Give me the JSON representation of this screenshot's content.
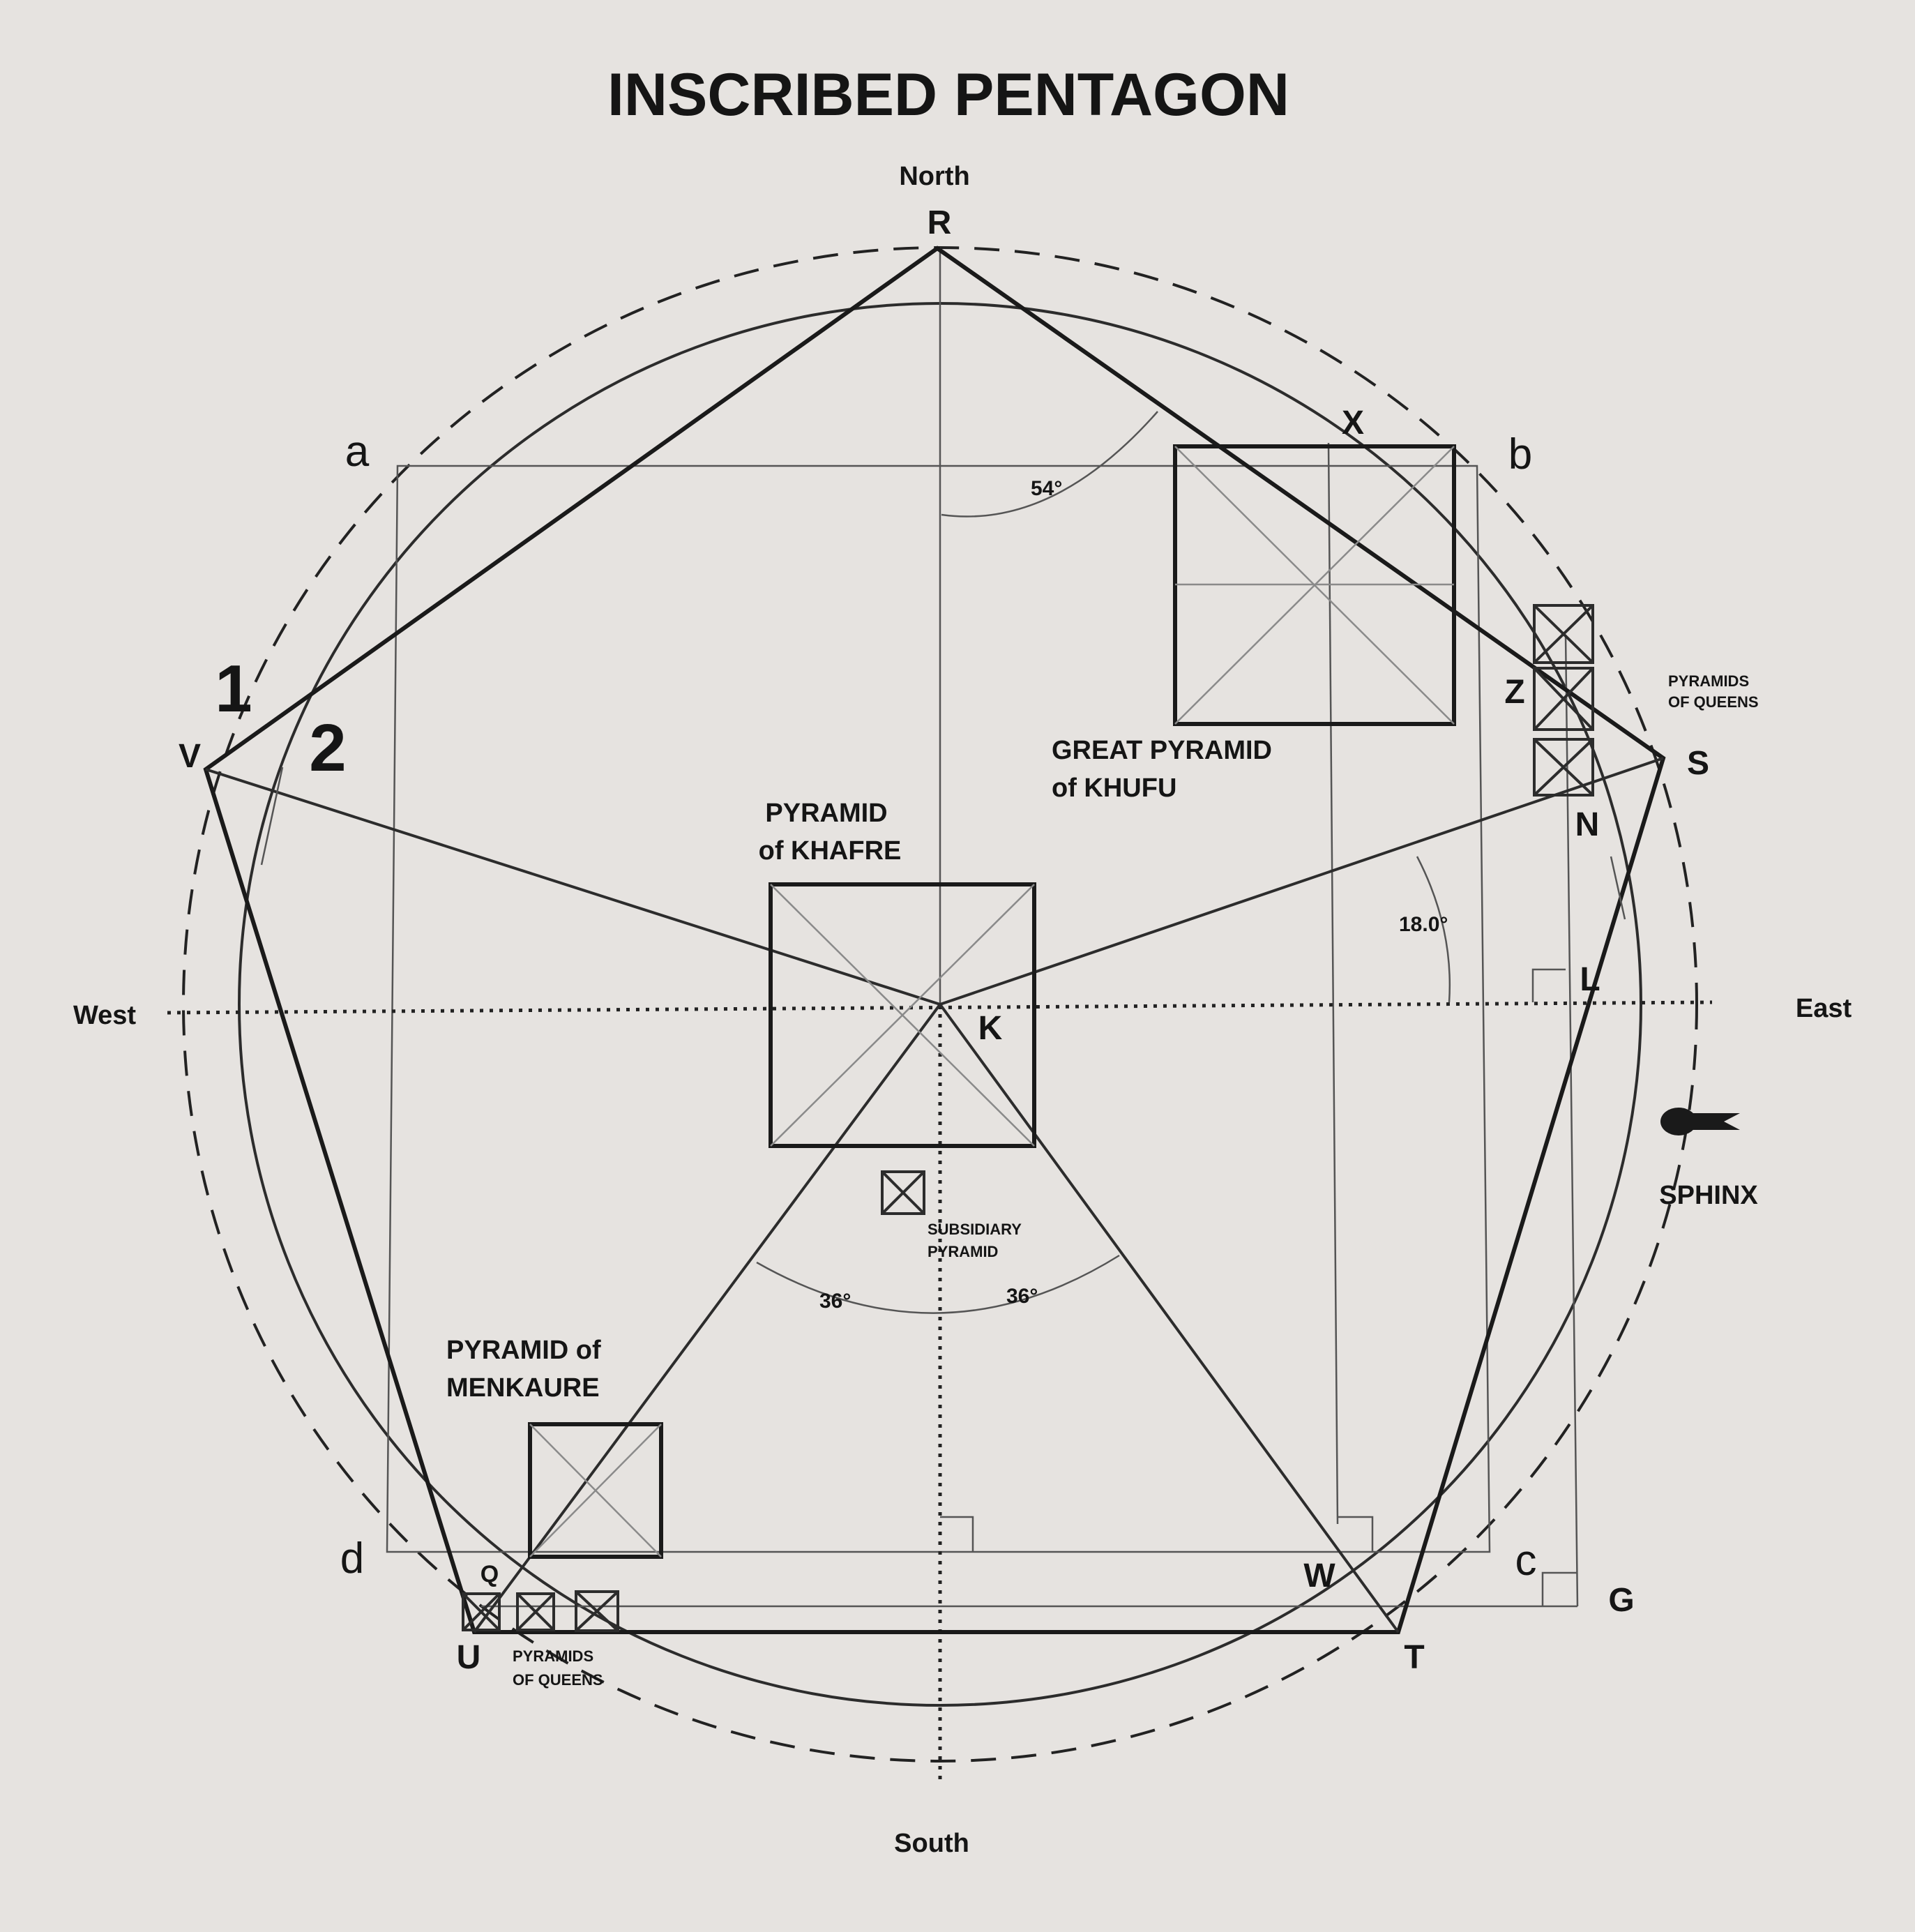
{
  "title": "INSCRIBED PENTAGON",
  "directions": {
    "north": "North",
    "south": "South",
    "east": "East",
    "west": "West"
  },
  "points": {
    "R": "R",
    "S": "S",
    "T": "T",
    "U": "U",
    "V": "V",
    "K": "K",
    "X": "X",
    "Z": "Z",
    "N": "N",
    "L": "L",
    "W": "W",
    "G": "G",
    "Q": "Q",
    "a": "a",
    "b": "b",
    "c": "c",
    "d": "d"
  },
  "circle_labels": {
    "outer": "1",
    "inner": "2"
  },
  "pyramids": {
    "khafre": [
      "PYRAMID",
      "of KHAFRE"
    ],
    "khufu": [
      "GREAT PYRAMID",
      "of KHUFU"
    ],
    "menkaure": [
      "PYRAMID of",
      "MENKAURE"
    ],
    "subsidiary": [
      "SUBSIDIARY",
      "PYRAMID"
    ],
    "queens_east": [
      "PYRAMIDS",
      "OF QUEENS"
    ],
    "queens_south": [
      "PYRAMIDS",
      "OF QUEENS"
    ]
  },
  "sphinx": "SPHINX",
  "angles": {
    "a54": "54°",
    "a18": "18.0°",
    "a36_left": "36°",
    "a36_right": "36°"
  }
}
